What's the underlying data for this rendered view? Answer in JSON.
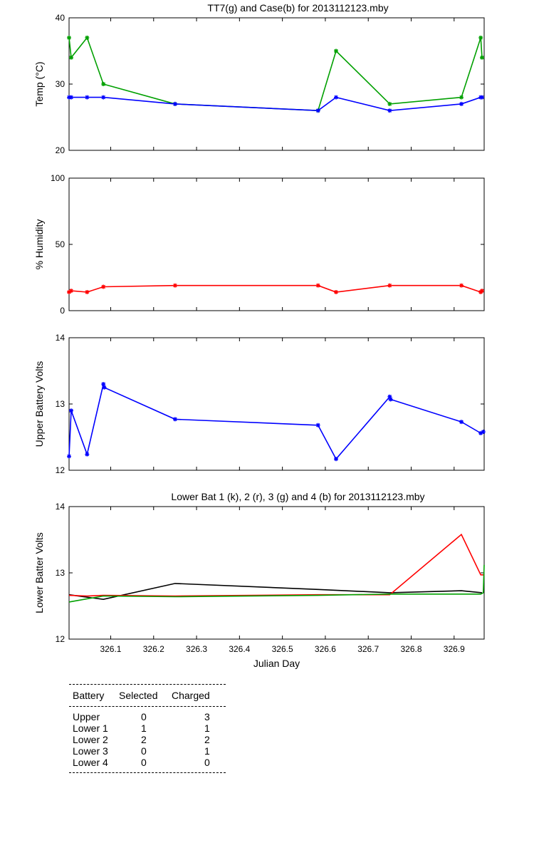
{
  "chart_data": [
    {
      "type": "line",
      "title": "TT7(g) and Case(b) for 2013112123.mby",
      "xlabel": "",
      "ylabel": "Temp  (°C)",
      "xlim": [
        326.003,
        326.97
      ],
      "ylim": [
        20,
        40
      ],
      "yticks": [
        "20",
        "30",
        "40"
      ],
      "series": [
        {
          "color": "#00a000",
          "x": [
            326.003,
            326.008,
            326.045,
            326.083,
            326.25,
            326.583,
            326.625,
            326.75,
            326.917,
            326.962,
            326.965
          ],
          "y": [
            37,
            34,
            37,
            30,
            27,
            26,
            35,
            27,
            28,
            37,
            34
          ]
        },
        {
          "color": "#0000ff",
          "x": [
            326.003,
            326.008,
            326.045,
            326.083,
            326.25,
            326.583,
            326.625,
            326.75,
            326.917,
            326.962,
            326.965
          ],
          "y": [
            28,
            28,
            28,
            28,
            27,
            26,
            28,
            26,
            27,
            28,
            28
          ]
        }
      ]
    },
    {
      "type": "line",
      "title": "",
      "ylabel": "% Humidity",
      "xlim": [
        326.003,
        326.97
      ],
      "ylim": [
        0,
        100
      ],
      "yticks": [
        "0",
        "50",
        "100"
      ],
      "series": [
        {
          "color": "#ff0000",
          "x": [
            326.003,
            326.008,
            326.045,
            326.083,
            326.25,
            326.583,
            326.625,
            326.75,
            326.917,
            326.962,
            326.965
          ],
          "y": [
            14,
            15,
            14,
            18,
            19,
            19,
            14,
            19,
            19,
            14,
            15
          ]
        }
      ]
    },
    {
      "type": "line",
      "title": "",
      "ylabel": "Upper Battery Volts",
      "xlim": [
        326.003,
        326.97
      ],
      "ylim": [
        12,
        14
      ],
      "yticks": [
        "12",
        "13",
        "14"
      ],
      "series": [
        {
          "color": "#0000ff",
          "x": [
            326.003,
            326.008,
            326.045,
            326.083,
            326.085,
            326.25,
            326.583,
            326.625,
            326.75,
            326.752,
            326.917,
            326.962,
            326.968
          ],
          "y": [
            12.21,
            12.9,
            12.24,
            13.3,
            13.25,
            12.77,
            12.68,
            12.17,
            13.11,
            13.07,
            12.73,
            12.56,
            12.58
          ]
        }
      ]
    },
    {
      "type": "line",
      "title": "Lower Bat 1 (k), 2 (r), 3 (g) and 4 (b) for 2013112123.mby",
      "xlabel": "Julian Day",
      "ylabel": "Lower Batter Volts",
      "xlim": [
        326.003,
        326.97
      ],
      "ylim": [
        12,
        14
      ],
      "yticks": [
        "12",
        "13",
        "14"
      ],
      "xticks": [
        "326.1",
        "326.2",
        "326.3",
        "326.4",
        "326.5",
        "326.6",
        "326.7",
        "326.8",
        "326.9"
      ],
      "series": [
        {
          "color": "#000000",
          "x": [
            326.003,
            326.083,
            326.25,
            326.583,
            326.75,
            326.917,
            326.965
          ],
          "y": [
            12.67,
            12.6,
            12.84,
            12.75,
            12.7,
            12.73,
            12.7
          ]
        },
        {
          "color": "#ff0000",
          "x": [
            326.003,
            326.045,
            326.083,
            326.25,
            326.583,
            326.75,
            326.917,
            326.962,
            326.97
          ],
          "y": [
            12.66,
            12.65,
            12.66,
            12.65,
            12.67,
            12.67,
            13.58,
            12.97,
            12.97
          ]
        },
        {
          "color": "#00a000",
          "x": [
            326.003,
            326.083,
            326.25,
            326.583,
            326.75,
            326.962,
            326.968,
            326.97
          ],
          "y": [
            12.56,
            12.65,
            12.64,
            12.66,
            12.68,
            12.68,
            12.7,
            13.12
          ]
        }
      ]
    }
  ],
  "summary_table": {
    "headers": [
      "Battery",
      "Selected",
      "Charged"
    ],
    "rows": [
      [
        "Upper",
        "0",
        "3"
      ],
      [
        "Lower 1",
        "1",
        "1"
      ],
      [
        "Lower 2",
        "2",
        "2"
      ],
      [
        "Lower 3",
        "0",
        "1"
      ],
      [
        "Lower 4",
        "0",
        "0"
      ]
    ]
  }
}
